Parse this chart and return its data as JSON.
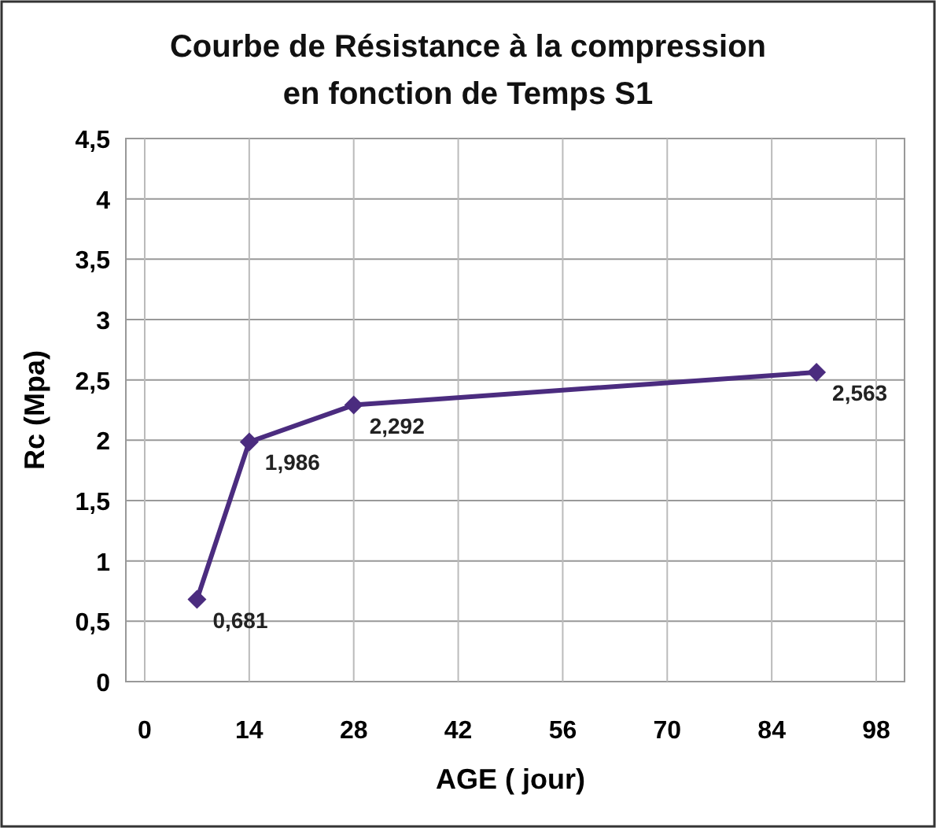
{
  "chart_data": {
    "type": "line",
    "title": "Courbe de Résistance à la compression\nen fonction de Temps S1",
    "xlabel": "AGE  ( jour)",
    "ylabel": "Rc (Mpa)",
    "x": [
      7,
      14,
      28,
      90
    ],
    "series": [
      {
        "color": "#4b2c7f",
        "values": [
          0.681,
          1.986,
          2.292,
          2.563
        ],
        "value_labels": [
          "0,681",
          "1,986",
          "2,292",
          "2,563"
        ]
      }
    ],
    "xlim": [
      0,
      98
    ],
    "xticks": [
      0,
      14,
      28,
      42,
      56,
      70,
      84,
      98
    ],
    "ylim": [
      0,
      4.5
    ],
    "yticks": [
      0,
      {
        "value": 0.5,
        "label": "0,5"
      },
      1,
      {
        "value": 1.5,
        "label": "1,5"
      },
      2,
      {
        "value": 2.5,
        "label": "2,5"
      },
      3,
      {
        "value": 3.5,
        "label": "3,5"
      },
      4,
      {
        "value": 4.5,
        "label": "4,5"
      }
    ],
    "grid": true,
    "marker": "diamond",
    "line_style": "solid"
  }
}
